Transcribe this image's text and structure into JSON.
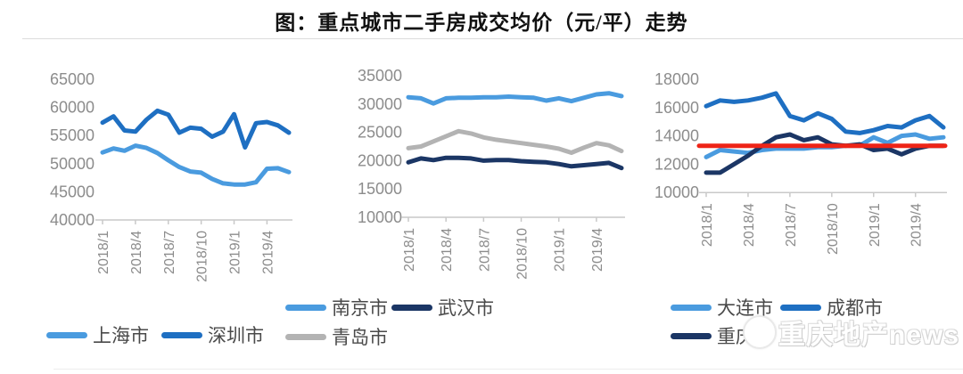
{
  "title": "图：重点城市二手房成交均价（元/平）走势",
  "watermark": {
    "text": "重庆地产news",
    "logo": "round-badge-logo"
  },
  "x_ticks": {
    "labels": [
      "2018/1",
      "2018/4",
      "2018/7",
      "2018/10",
      "2019/1",
      "2019/4"
    ],
    "indices": [
      0,
      3,
      6,
      9,
      12,
      15
    ]
  },
  "x_months": [
    "2018/1",
    "2018/2",
    "2018/3",
    "2018/4",
    "2018/5",
    "2018/6",
    "2018/7",
    "2018/8",
    "2018/9",
    "2018/10",
    "2018/11",
    "2018/12",
    "2019/1",
    "2019/2",
    "2019/3",
    "2019/4",
    "2019/5",
    "2019/6"
  ],
  "colors": {
    "light_blue": "#4A9BDF",
    "medium_blue": "#1E6FC2",
    "navy": "#1B3665",
    "gray": "#B3B3B3",
    "red": "#EE2417",
    "axis": "#c9c9c9",
    "tick_label": "#8c8c8c"
  },
  "chart_data": [
    {
      "type": "line",
      "ylim": [
        40000,
        65000
      ],
      "yticks": [
        65000,
        60000,
        55000,
        50000,
        45000,
        40000
      ],
      "series": [
        {
          "name": "上海市",
          "color": "#4A9BDF",
          "values": [
            52000,
            52700,
            52300,
            53200,
            52800,
            51900,
            50600,
            49400,
            48600,
            48400,
            47300,
            46500,
            46300,
            46300,
            46700,
            49100,
            49200,
            48500
          ]
        },
        {
          "name": "深圳市",
          "color": "#1E6FC2",
          "values": [
            57300,
            58400,
            55900,
            55700,
            57800,
            59400,
            58700,
            55500,
            56400,
            56200,
            54800,
            55700,
            58800,
            52900,
            57200,
            57400,
            56800,
            55500
          ]
        }
      ]
    },
    {
      "type": "line",
      "ylim": [
        10000,
        35000
      ],
      "yticks": [
        35000,
        30000,
        25000,
        20000,
        15000,
        10000
      ],
      "series": [
        {
          "name": "南京市",
          "color": "#4A9BDF",
          "values": [
            31200,
            31000,
            30100,
            31000,
            31100,
            31100,
            31200,
            31200,
            31300,
            31200,
            31100,
            30600,
            31000,
            30500,
            31100,
            31700,
            31900,
            31400
          ]
        },
        {
          "name": "青岛市",
          "color": "#B3B3B3",
          "values": [
            22200,
            22500,
            23400,
            24300,
            25200,
            24800,
            24100,
            23700,
            23400,
            23100,
            22800,
            22500,
            22100,
            21400,
            22300,
            23100,
            22700,
            21700
          ]
        },
        {
          "name": "武汉市",
          "color": "#1B3665",
          "values": [
            19700,
            20400,
            20100,
            20500,
            20500,
            20400,
            20000,
            20100,
            20100,
            19900,
            19800,
            19700,
            19400,
            19000,
            19200,
            19400,
            19600,
            18700
          ]
        }
      ]
    },
    {
      "type": "line",
      "ylim": [
        10000,
        18000
      ],
      "yticks": [
        18000,
        16000,
        14000,
        12000,
        10000
      ],
      "reference_line": {
        "value": 13300,
        "color": "#EE2417"
      },
      "series": [
        {
          "name": "大连市",
          "color": "#4A9BDF",
          "values": [
            12500,
            13000,
            12900,
            12800,
            13000,
            13100,
            13100,
            13100,
            13200,
            13200,
            13300,
            13300,
            13900,
            13500,
            14000,
            14100,
            13800,
            13900
          ]
        },
        {
          "name": "成都市",
          "color": "#1E6FC2",
          "values": [
            16100,
            16500,
            16400,
            16500,
            16700,
            17000,
            15400,
            15100,
            15600,
            15200,
            14300,
            14200,
            14400,
            14700,
            14600,
            15100,
            15400,
            14600
          ]
        },
        {
          "name": "重庆市",
          "color": "#1B3665",
          "values": [
            11400,
            11400,
            12000,
            12600,
            13300,
            13900,
            14100,
            13700,
            13900,
            13400,
            13300,
            13400,
            13000,
            13100,
            12700,
            13100,
            13300,
            13300
          ]
        }
      ]
    }
  ]
}
